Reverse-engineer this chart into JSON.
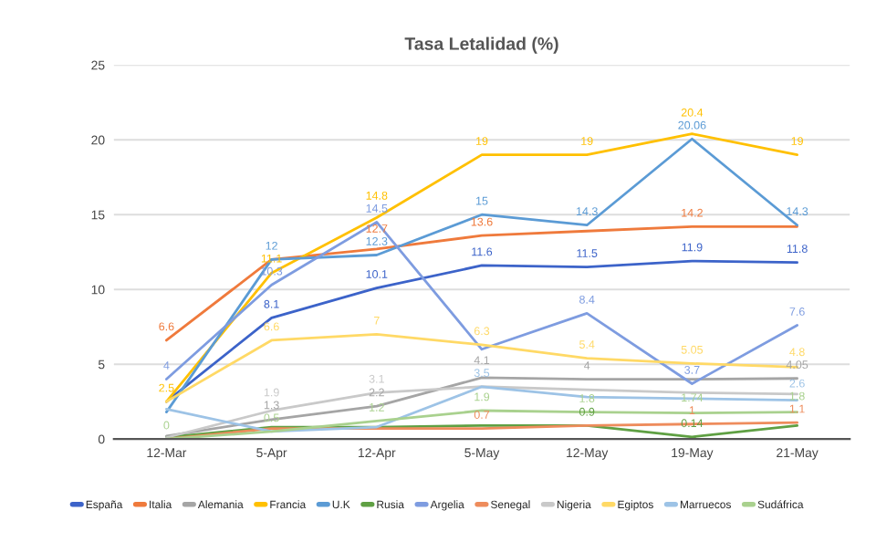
{
  "chart_data": {
    "type": "line",
    "title": "Tasa Letalidad (%)",
    "categories": [
      "12-Mar",
      "5-Apr",
      "12-Apr",
      "5-May",
      "12-May",
      "19-May",
      "21-May"
    ],
    "ylim": [
      0,
      25
    ],
    "yticks": [
      0,
      5,
      10,
      15,
      20,
      25
    ],
    "grid": "y",
    "legend": "bottom",
    "marker": "none",
    "series": [
      {
        "name": "España",
        "color": "#3c63c9",
        "values": [
          2.5,
          8.1,
          10.1,
          11.6,
          11.5,
          11.9,
          11.8
        ],
        "value_labels": [
          null,
          "8.1",
          "10.1",
          "11.6",
          "11.5",
          "11.9",
          "11.8"
        ]
      },
      {
        "name": "Italia",
        "color": "#ef7a3c",
        "values": [
          6.6,
          12,
          12.7,
          13.6,
          13.9,
          14.2,
          14.2
        ],
        "value_labels": [
          "6.6",
          null,
          "12.7",
          "13.6",
          null,
          "14.2",
          null
        ]
      },
      {
        "name": "Alemania",
        "color": "#a5a5a5",
        "values": [
          0.2,
          1.3,
          2.2,
          4.1,
          4,
          4.0,
          4.05
        ],
        "value_labels": [
          null,
          "1.3",
          "2.2",
          "4.1",
          "4",
          null,
          "4.05"
        ]
      },
      {
        "name": "Francia",
        "color": "#ffc000",
        "values": [
          2.5,
          11.1,
          14.8,
          19,
          19,
          20.4,
          19
        ],
        "value_labels": [
          "2.5",
          "11.1",
          "14.8",
          "19",
          "19",
          "20.4",
          "19"
        ]
      },
      {
        "name": "U.K",
        "color": "#5b9bd5",
        "values": [
          1.8,
          12,
          12.3,
          15,
          14.3,
          20.06,
          14.3
        ],
        "value_labels": [
          null,
          "12",
          "12.3",
          "15",
          "14.3",
          "20.06",
          "14.3"
        ]
      },
      {
        "name": "Rusia",
        "color": "#5fa043",
        "values": [
          0.1,
          0.8,
          0.8,
          0.9,
          0.9,
          0.14,
          0.9
        ],
        "value_labels": [
          null,
          null,
          null,
          null,
          "0.9",
          "0.14",
          null
        ]
      },
      {
        "name": "Argelia",
        "color": "#7e9ce0",
        "values": [
          4,
          10.3,
          14.5,
          6,
          8.4,
          3.7,
          7.6
        ],
        "value_labels": [
          "4",
          "10.3",
          "14.5",
          null,
          "8.4",
          "3.7",
          "7.6"
        ]
      },
      {
        "name": "Senegal",
        "color": "#ee8c5c",
        "values": [
          0,
          0.7,
          0.7,
          0.7,
          0.9,
          1,
          1.1
        ],
        "value_labels": [
          null,
          null,
          null,
          "0.7",
          null,
          "1",
          "1.1"
        ]
      },
      {
        "name": "Nigeria",
        "color": "#c9c9c9",
        "values": [
          0.1,
          1.9,
          3.1,
          3.5,
          3.3,
          3.1,
          3.0
        ],
        "value_labels": [
          null,
          "1.9",
          "3.1",
          null,
          null,
          null,
          null
        ]
      },
      {
        "name": "Egiptos",
        "color": "#ffd966",
        "values": [
          2.5,
          6.6,
          7,
          6.3,
          5.4,
          5.05,
          4.8
        ],
        "value_labels": [
          null,
          "6.6",
          "7",
          "6.3",
          "5.4",
          "5.05",
          "4.8"
        ]
      },
      {
        "name": "Marruecos",
        "color": "#9dc3e6",
        "values": [
          2,
          0.5,
          0.8,
          3.5,
          2.8,
          2.7,
          2.6
        ],
        "value_labels": [
          null,
          null,
          null,
          "3.5",
          null,
          null,
          "2.6"
        ]
      },
      {
        "name": "Sudáfrica",
        "color": "#a9d18e",
        "values": [
          0,
          0.5,
          1.2,
          1.9,
          1.8,
          1.74,
          1.8
        ],
        "value_labels": [
          "0",
          "0.5",
          "1.2",
          "1.9",
          "1.8",
          "1.74",
          "1.8"
        ]
      }
    ]
  }
}
